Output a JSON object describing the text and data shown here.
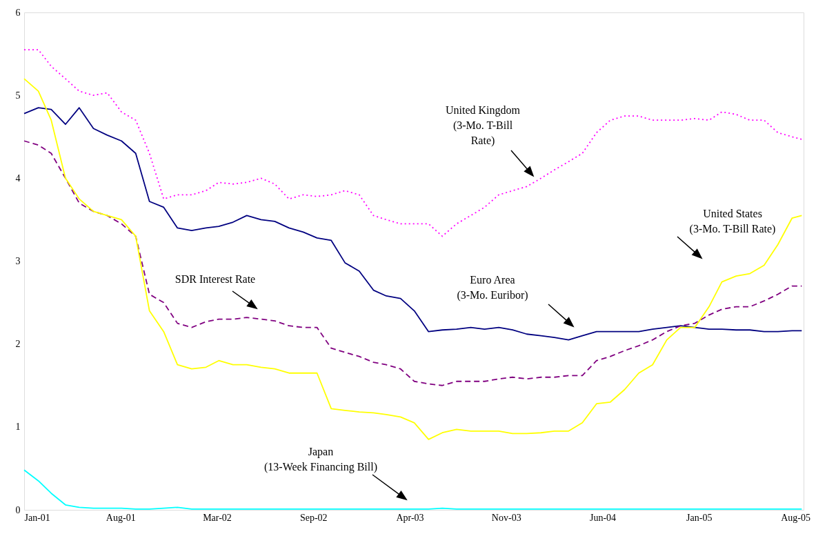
{
  "chart_data": {
    "type": "line",
    "x": [
      "2001-01-05",
      "2001-02-05",
      "2001-03-05",
      "2001-04-05",
      "2001-05-05",
      "2001-06-05",
      "2001-07-05",
      "2001-08-05",
      "2001-09-05",
      "2001-10-05",
      "2001-11-05",
      "2001-12-05",
      "2002-01-05",
      "2002-02-05",
      "2002-03-05",
      "2002-04-05",
      "2002-05-05",
      "2002-06-05",
      "2002-07-05",
      "2002-08-05",
      "2002-09-05",
      "2002-10-05",
      "2002-11-05",
      "2002-12-05",
      "2003-01-05",
      "2003-02-05",
      "2003-03-05",
      "2003-04-05",
      "2003-05-05",
      "2003-06-05",
      "2003-07-05",
      "2003-08-05",
      "2003-09-05",
      "2003-10-05",
      "2003-11-05",
      "2003-12-05",
      "2004-01-05",
      "2004-02-05",
      "2004-03-05",
      "2004-04-05",
      "2004-05-05",
      "2004-06-05",
      "2004-07-05",
      "2004-08-05",
      "2004-09-05",
      "2004-10-05",
      "2004-11-05",
      "2004-12-05",
      "2005-01-05",
      "2005-02-05",
      "2005-03-05",
      "2005-04-05",
      "2005-05-05",
      "2005-06-05",
      "2005-07-05",
      "2005-08-05",
      "2005-08-26"
    ],
    "series": [
      {
        "color": "#ff00ff",
        "line_style": "dotted",
        "values": [
          5.55,
          5.55,
          5.35,
          5.2,
          5.05,
          5.0,
          5.03,
          4.8,
          4.7,
          4.3,
          3.75,
          3.8,
          3.8,
          3.85,
          3.95,
          3.93,
          3.95,
          4.0,
          3.93,
          3.75,
          3.8,
          3.78,
          3.8,
          3.85,
          3.8,
          3.55,
          3.5,
          3.45,
          3.45,
          3.45,
          3.3,
          3.45,
          3.55,
          3.65,
          3.8,
          3.85,
          3.9,
          4.0,
          4.1,
          4.2,
          4.3,
          4.55,
          4.7,
          4.75,
          4.75,
          4.7,
          4.7,
          4.7,
          4.72,
          4.7,
          4.8,
          4.77,
          4.7,
          4.7,
          4.55,
          4.5,
          4.47
        ]
      },
      {
        "color": "#000080",
        "line_style": "solid",
        "values": [
          4.78,
          4.85,
          4.83,
          4.65,
          4.85,
          4.6,
          4.52,
          4.45,
          4.3,
          3.72,
          3.65,
          3.4,
          3.37,
          3.4,
          3.42,
          3.47,
          3.55,
          3.5,
          3.48,
          3.4,
          3.35,
          3.28,
          3.25,
          2.98,
          2.88,
          2.65,
          2.58,
          2.55,
          2.4,
          2.15,
          2.17,
          2.18,
          2.2,
          2.18,
          2.2,
          2.17,
          2.12,
          2.1,
          2.08,
          2.05,
          2.1,
          2.15,
          2.15,
          2.15,
          2.15,
          2.18,
          2.2,
          2.22,
          2.2,
          2.18,
          2.18,
          2.17,
          2.17,
          2.15,
          2.15,
          2.16,
          2.16
        ]
      },
      {
        "color": "#800080",
        "line_style": "dashed",
        "values": [
          4.45,
          4.4,
          4.3,
          4.0,
          3.7,
          3.6,
          3.55,
          3.45,
          3.3,
          2.6,
          2.5,
          2.25,
          2.2,
          2.27,
          2.3,
          2.3,
          2.32,
          2.3,
          2.28,
          2.22,
          2.2,
          2.2,
          1.95,
          1.9,
          1.85,
          1.78,
          1.75,
          1.7,
          1.55,
          1.52,
          1.5,
          1.55,
          1.55,
          1.55,
          1.58,
          1.6,
          1.58,
          1.6,
          1.6,
          1.62,
          1.62,
          1.8,
          1.85,
          1.92,
          1.98,
          2.05,
          2.15,
          2.22,
          2.25,
          2.35,
          2.42,
          2.45,
          2.45,
          2.52,
          2.6,
          2.7,
          2.7
        ]
      },
      {
        "color": "#ffff00",
        "line_style": "solid",
        "values": [
          5.2,
          5.05,
          4.7,
          4.0,
          3.75,
          3.6,
          3.55,
          3.5,
          3.3,
          2.4,
          2.15,
          1.75,
          1.7,
          1.72,
          1.8,
          1.75,
          1.75,
          1.72,
          1.7,
          1.65,
          1.65,
          1.65,
          1.22,
          1.2,
          1.18,
          1.17,
          1.15,
          1.12,
          1.05,
          0.85,
          0.93,
          0.97,
          0.95,
          0.95,
          0.95,
          0.92,
          0.92,
          0.93,
          0.95,
          0.95,
          1.05,
          1.28,
          1.3,
          1.45,
          1.65,
          1.75,
          2.05,
          2.2,
          2.2,
          2.45,
          2.75,
          2.82,
          2.85,
          2.95,
          3.2,
          3.52,
          3.55
        ]
      },
      {
        "color": "#00ffff",
        "line_style": "solid",
        "values": [
          0.48,
          0.35,
          0.2,
          0.06,
          0.03,
          0.02,
          0.02,
          0.02,
          0.01,
          0.01,
          0.02,
          0.03,
          0.01,
          0.01,
          0.01,
          0.01,
          0.01,
          0.01,
          0.01,
          0.01,
          0.01,
          0.01,
          0.01,
          0.01,
          0.01,
          0.01,
          0.01,
          0.01,
          0.01,
          0.01,
          0.02,
          0.01,
          0.01,
          0.01,
          0.01,
          0.01,
          0.01,
          0.01,
          0.01,
          0.01,
          0.01,
          0.01,
          0.01,
          0.01,
          0.01,
          0.01,
          0.01,
          0.01,
          0.01,
          0.01,
          0.01,
          0.01,
          0.01,
          0.01,
          0.01,
          0.01,
          0.01
        ]
      }
    ],
    "xlim": [
      "2001-01-05",
      "2005-08-30"
    ],
    "xticks": [
      {
        "value": "2001-01-05",
        "label": "Jan-01"
      },
      {
        "value": "2001-08-03",
        "label": "Aug-01"
      },
      {
        "value": "2002-03-01",
        "label": "Mar-02"
      },
      {
        "value": "2002-09-27",
        "label": "Sep-02"
      },
      {
        "value": "2003-04-25",
        "label": "Apr-03"
      },
      {
        "value": "2003-11-21",
        "label": "Nov-03"
      },
      {
        "value": "2004-06-18",
        "label": "Jun-04"
      },
      {
        "value": "2005-01-14",
        "label": "Jan-05"
      },
      {
        "value": "2005-08-12",
        "label": "Aug-05"
      }
    ],
    "ylim": [
      0,
      6
    ],
    "yticks": [
      0,
      1,
      2,
      3,
      4,
      5,
      6
    ],
    "grid": false,
    "marker": "none",
    "annotations": [
      "United Kingdom\n(3-Mo. T-Bill\nRate)",
      "United States\n(3-Mo. T-Bill Rate)",
      "Euro Area\n(3-Mo. Euribor)",
      "SDR Interest Rate",
      "Japan\n(13-Week Financing Bill)"
    ]
  }
}
